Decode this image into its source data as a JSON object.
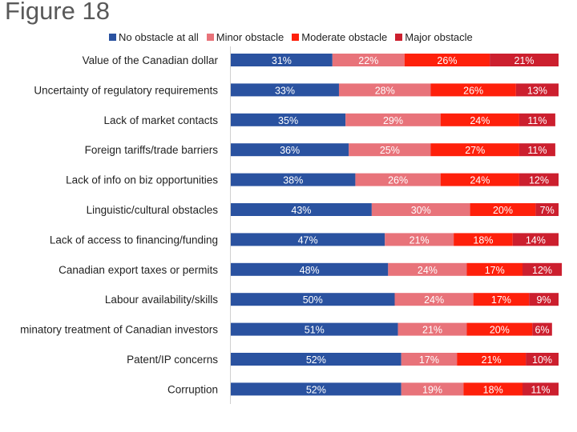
{
  "chart_data": {
    "type": "bar",
    "orientation": "horizontal",
    "stacked": true,
    "title": "Figure 18",
    "categories": [
      "Value of the Canadian dollar",
      "Uncertainty of regulatory requirements",
      "Lack of market contacts",
      "Foreign tariffs/trade barriers",
      "Lack of info on biz opportunities",
      "Linguistic/cultural obstacles",
      "Lack of access to financing/funding",
      "Canadian export taxes or permits",
      "Labour availability/skills",
      "minatory treatment of Canadian investors",
      "Patent/IP concerns",
      "Corruption"
    ],
    "series": [
      {
        "name": "No obstacle at all",
        "color": "#2a52a0",
        "values": [
          31,
          33,
          35,
          36,
          38,
          43,
          47,
          48,
          50,
          51,
          52,
          52
        ]
      },
      {
        "name": "Minor obstacle",
        "color": "#e8737a",
        "values": [
          22,
          28,
          29,
          25,
          26,
          30,
          21,
          24,
          24,
          21,
          17,
          19
        ]
      },
      {
        "name": "Moderate obstacle",
        "color": "#fe200b",
        "values": [
          26,
          26,
          24,
          27,
          24,
          20,
          18,
          17,
          17,
          20,
          21,
          18
        ]
      },
      {
        "name": "Major obstacle",
        "color": "#cc1f2e",
        "values": [
          21,
          13,
          11,
          11,
          12,
          7,
          14,
          12,
          9,
          6,
          10,
          11
        ]
      }
    ],
    "value_format": "percent",
    "legend": "top",
    "grid": false
  }
}
